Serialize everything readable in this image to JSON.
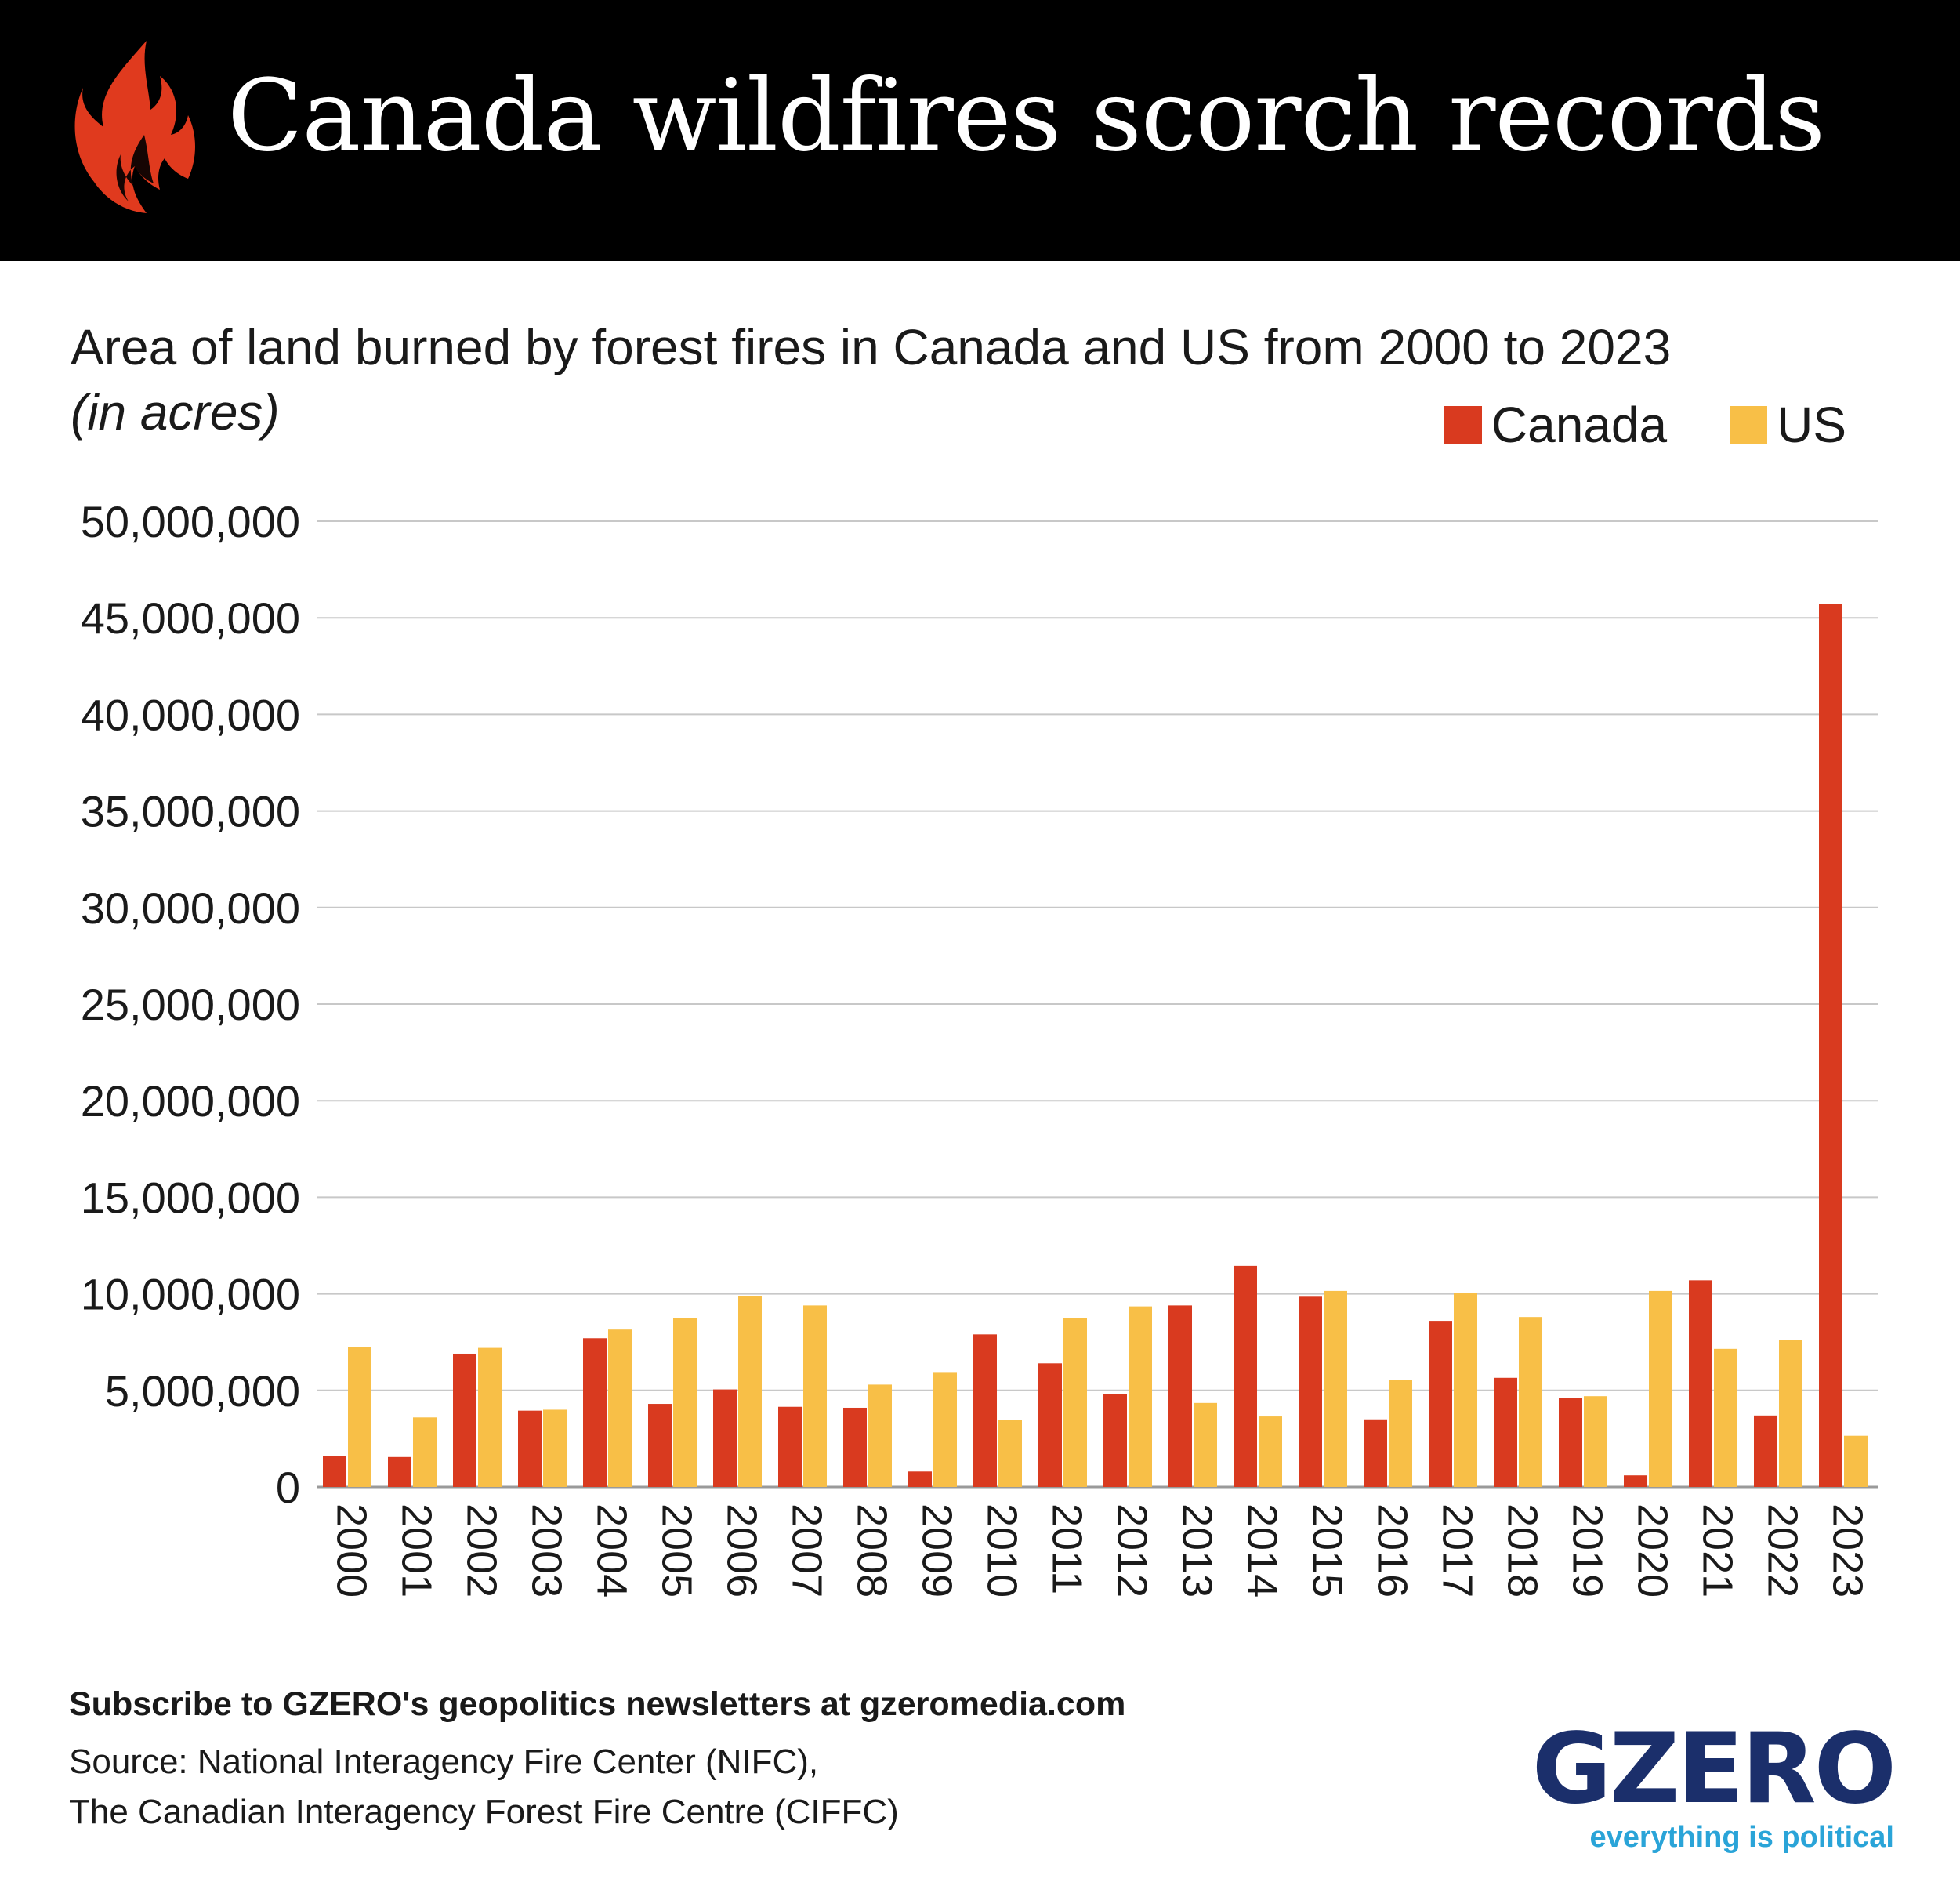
{
  "header": {
    "title": "Canada wildfires scorch records",
    "icon": "flame-icon",
    "icon_color": "#e03a1e"
  },
  "subtitle": {
    "text": "Area of land burned by forest fires in Canada and US from 2000 to 2023",
    "unit": "(in acres)"
  },
  "legend": [
    {
      "name": "Canada",
      "color": "#d93a1f"
    },
    {
      "name": "US",
      "color": "#f8bf47"
    }
  ],
  "footer": {
    "cta": "Subscribe to GZERO's geopolitics newsletters at gzeromedia.com",
    "source_line1": "Source: National Interagency Fire Center (NIFC),",
    "source_line2": "The Canadian Interagency Forest Fire Centre (CIFFC)"
  },
  "logo": {
    "wordmark": "GZERO",
    "tagline": "everything is political",
    "wordmark_color": "#1b2f6b",
    "tagline_color": "#2aa4d8"
  },
  "chart_data": {
    "type": "bar",
    "categories": [
      "2000",
      "2001",
      "2002",
      "2003",
      "2004",
      "2005",
      "2006",
      "2007",
      "2008",
      "2009",
      "2010",
      "2011",
      "2012",
      "2013",
      "2014",
      "2015",
      "2016",
      "2017",
      "2018",
      "2019",
      "2020",
      "2021",
      "2022",
      "2023"
    ],
    "series": [
      {
        "name": "Canada",
        "color": "#d93a1f",
        "values": [
          1600000,
          1550000,
          6900000,
          3950000,
          7700000,
          4300000,
          5050000,
          4150000,
          4100000,
          800000,
          7900000,
          6400000,
          4800000,
          9400000,
          11450000,
          9850000,
          3500000,
          8600000,
          5650000,
          4600000,
          600000,
          10700000,
          3700000,
          45700000
        ]
      },
      {
        "name": "US",
        "color": "#f8bf47",
        "values": [
          7250000,
          3600000,
          7200000,
          4000000,
          8150000,
          8750000,
          9900000,
          9400000,
          5300000,
          5950000,
          3450000,
          8750000,
          9350000,
          4350000,
          3650000,
          10150000,
          5550000,
          10050000,
          8800000,
          4700000,
          10150000,
          7150000,
          7600000,
          2650000
        ]
      }
    ],
    "yticks": [
      "0",
      "5,000,000",
      "10,000,000",
      "15,000,000",
      "20,000,000",
      "25,000,000",
      "30,000,000",
      "35,000,000",
      "40,000,000",
      "45,000,000",
      "50,000,000"
    ],
    "ylim": [
      0,
      50000000
    ],
    "grid": true,
    "legend_position": "top-right",
    "xlabel": "",
    "ylabel": ""
  }
}
